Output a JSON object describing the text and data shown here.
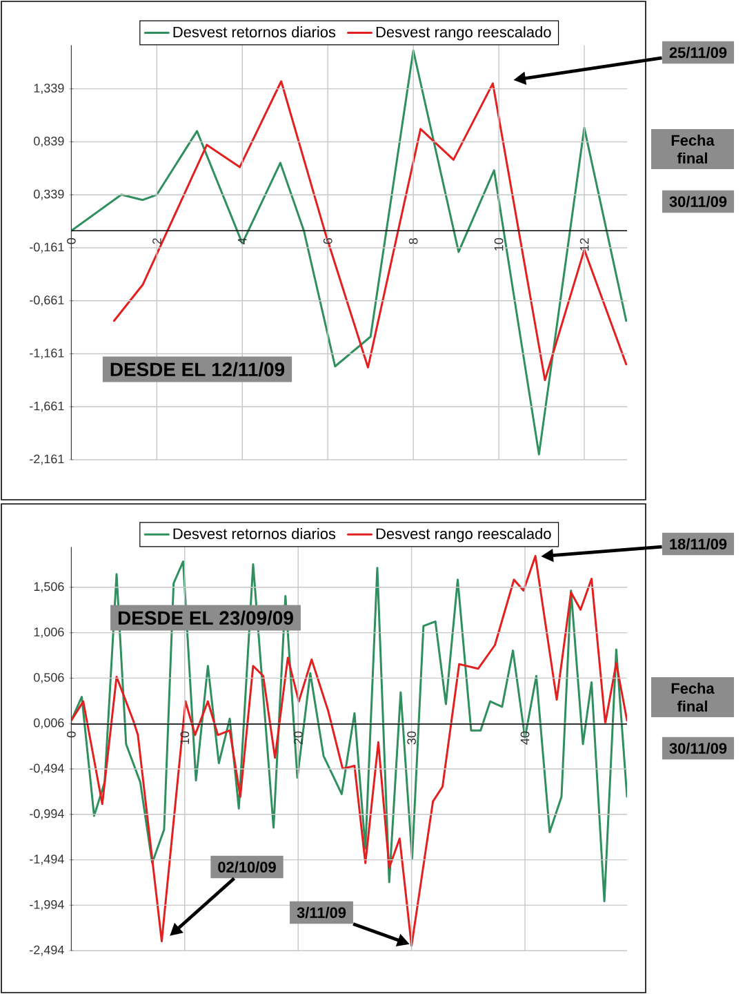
{
  "chart_data": [
    {
      "type": "line",
      "xlim": [
        0,
        13
      ],
      "xticks": [
        0,
        2,
        4,
        6,
        8,
        10,
        12
      ],
      "ylim": [
        -2.161,
        1.75
      ],
      "yticks": [
        {
          "value": -2.161,
          "label": "-2,161"
        },
        {
          "value": -1.661,
          "label": "-1,661"
        },
        {
          "value": -1.161,
          "label": "-1,161"
        },
        {
          "value": -0.661,
          "label": "-0,661"
        },
        {
          "value": -0.161,
          "label": "-0,161"
        },
        {
          "value": 0.339,
          "label": "0,339"
        },
        {
          "value": 0.839,
          "label": "0,839"
        },
        {
          "value": 1.339,
          "label": "1,339"
        }
      ],
      "grid": true,
      "legend": "top",
      "series": [
        {
          "name": "Desvest retornos diarios",
          "color": "#2f8f5f",
          "x": [
            0,
            1.17,
            1.67,
            2,
            2.94,
            4,
            4.89,
            5.44,
            6.17,
            7,
            8,
            9.06,
            9.89,
            10.94,
            12,
            12.98
          ],
          "values": [
            0,
            0.34,
            0.29,
            0.34,
            0.94,
            -0.12,
            0.64,
            0,
            -1.28,
            -1.0,
            1.7,
            -0.2,
            0.57,
            -2.11,
            0.97,
            -0.85
          ]
        },
        {
          "name": "Desvest rango reescalado",
          "color": "#e32020",
          "x": [
            1,
            1.67,
            3.17,
            3.94,
            4.91,
            5.94,
            6.94,
            8.17,
            8.94,
            9.86,
            11.08,
            12,
            12.98
          ],
          "values": [
            -0.85,
            -0.51,
            0.81,
            0.6,
            1.41,
            -0.02,
            -1.29,
            0.96,
            0.67,
            1.39,
            -1.41,
            -0.18,
            -1.26
          ]
        }
      ],
      "annotations": [
        "DESDE EL 12/11/09",
        "25/11/09",
        "Fecha final",
        "30/11/09"
      ]
    },
    {
      "type": "line",
      "xlim": [
        0,
        49
      ],
      "xticks": [
        0,
        10,
        20,
        30,
        40
      ],
      "ylim": [
        -2.494,
        1.95
      ],
      "yticks": [
        {
          "value": -2.494,
          "label": "-2,494"
        },
        {
          "value": -1.994,
          "label": "-1,994"
        },
        {
          "value": -1.494,
          "label": "-1,494"
        },
        {
          "value": -0.994,
          "label": "-0,994"
        },
        {
          "value": -0.494,
          "label": "-0,494"
        },
        {
          "value": 0.006,
          "label": "0,006"
        },
        {
          "value": 0.506,
          "label": "0,506"
        },
        {
          "value": 1.006,
          "label": "1,006"
        },
        {
          "value": 1.506,
          "label": "1,506"
        }
      ],
      "grid": true,
      "legend": "top",
      "series": [
        {
          "name": "Desvest retornos diarios",
          "color": "#2f8f5f",
          "x": [
            0,
            0.92,
            2.01,
            2.94,
            3.99,
            4.83,
            6.08,
            7.13,
            8.18,
            9.02,
            9.86,
            10.99,
            12.04,
            13.01,
            13.97,
            14.77,
            16.03,
            17.83,
            18.88,
            19.93,
            21.07,
            22.24,
            23.84,
            24.97,
            25.93,
            26.98,
            28.03,
            29.04,
            30.05,
            31.05,
            32.1,
            33.03,
            34.07,
            35.25,
            36.09,
            36.93,
            37.98,
            38.94,
            40,
            41,
            42.18,
            43.22,
            44.06,
            45.11,
            45.87,
            47,
            48.05,
            49
          ],
          "values": [
            0.04,
            0.3,
            -1.01,
            -0.64,
            1.65,
            -0.22,
            -0.64,
            -1.53,
            -1.16,
            1.55,
            1.79,
            -0.62,
            0.64,
            -0.43,
            0.06,
            -0.93,
            1.76,
            -1.14,
            1.41,
            -0.59,
            0.56,
            -0.35,
            -0.77,
            0.12,
            -1.37,
            1.72,
            -1.74,
            0.35,
            -1.48,
            1.08,
            1.13,
            0.22,
            1.59,
            -0.07,
            -0.07,
            0.25,
            0.19,
            0.81,
            -0.15,
            0.53,
            -1.19,
            -0.8,
            1.47,
            -0.22,
            0.46,
            -1.95,
            0.82,
            -0.8
          ]
        },
        {
          "name": "Desvest rango reescalado",
          "color": "#e32020",
          "x": [
            0,
            1.05,
            2.73,
            3.99,
            5.46,
            5.87,
            7.97,
            10.07,
            10.91,
            12.04,
            12.92,
            13.97,
            14.9,
            16.03,
            16.92,
            17.96,
            19.09,
            20.06,
            21.19,
            22.66,
            23.92,
            24.97,
            25.93,
            27.07,
            28.03,
            28.95,
            30,
            31.89,
            32.73,
            34.2,
            35.88,
            37.35,
            39.03,
            39.87,
            40.92,
            42.8,
            44.06,
            44.9,
            45.87,
            47.08,
            48.05,
            49
          ],
          "values": [
            0.04,
            0.25,
            -0.88,
            0.52,
            0.04,
            -0.12,
            -2.39,
            0.25,
            -0.12,
            0.25,
            -0.12,
            -0.07,
            -0.8,
            0.64,
            0.53,
            -0.37,
            0.73,
            0.25,
            0.71,
            0.14,
            -0.49,
            -0.46,
            -1.53,
            -0.2,
            -1.58,
            -1.26,
            -2.44,
            -0.85,
            -0.69,
            0.66,
            0.61,
            0.87,
            1.59,
            1.47,
            1.85,
            0.27,
            1.45,
            1.26,
            1.6,
            0.01,
            0.67,
            0.04
          ]
        }
      ],
      "annotations": [
        "DESDE EL 23/09/09",
        "18/11/09",
        "02/10/09",
        "3/11/09",
        "Fecha final",
        "30/11/09"
      ]
    }
  ]
}
